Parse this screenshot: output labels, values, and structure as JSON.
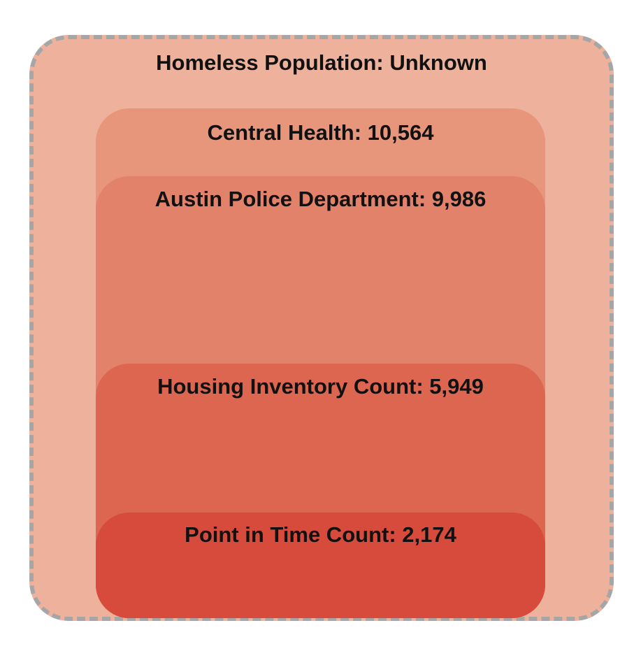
{
  "layers": [
    {
      "label": "Homeless Population: Unknown",
      "value": null,
      "color": "#eeb19c"
    },
    {
      "label": "Central Health: 10,564",
      "value": 10564,
      "color": "#e7967c"
    },
    {
      "label": "Austin Police Department: 9,986",
      "value": 9986,
      "color": "#e3826a"
    },
    {
      "label": "Housing Inventory Count: 5,949",
      "value": 5949,
      "color": "#dc6650"
    },
    {
      "label": "Point in Time Count: 2,174",
      "value": 2174,
      "color": "#d64b3c"
    }
  ],
  "border_color": "#a6a6a6"
}
